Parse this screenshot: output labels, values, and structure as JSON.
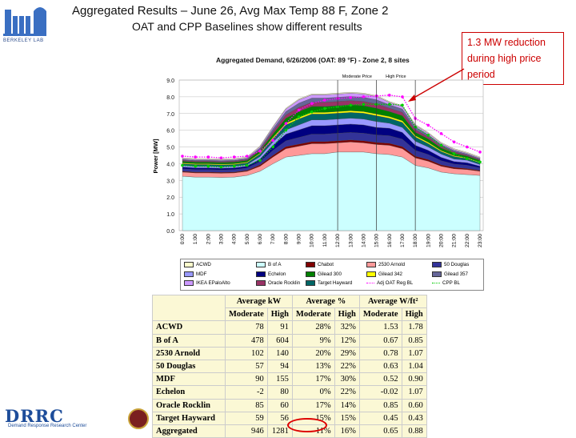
{
  "header": {
    "title": "Aggregated Results – June 26, Avg Max Temp 88 F, Zone 2",
    "subtitle": "OAT and CPP Baselines show different results"
  },
  "logo_top": {
    "text": "BERKELEY LAB"
  },
  "callout": {
    "text": "1.3 MW reduction during high price period",
    "color": "#cc0000"
  },
  "chart_data": {
    "type": "area",
    "title": "Aggregated Demand, 6/26/2006 (OAT: 89 °F) - Zone 2, 8 sites",
    "ylabel": "Power [MW]",
    "xlabel": "",
    "ylim": [
      0,
      9
    ],
    "yticks": [
      "0.0",
      "1.0",
      "2.0",
      "3.0",
      "4.0",
      "5.0",
      "6.0",
      "7.0",
      "8.0",
      "9.0"
    ],
    "categories": [
      "0:00",
      "1:00",
      "2:00",
      "3:00",
      "4:00",
      "5:00",
      "6:00",
      "7:00",
      "8:00",
      "9:00",
      "10:00",
      "11:00",
      "12:00",
      "13:00",
      "14:00",
      "15:00",
      "16:00",
      "17:00",
      "18:00",
      "19:00",
      "20:00",
      "21:00",
      "22:00",
      "23:00"
    ],
    "period_labels": {
      "moderate": "Moderate Price",
      "high": "High Price"
    },
    "series": [
      {
        "name": "B of A",
        "color": "#ccffff",
        "values": [
          3.25,
          3.2,
          3.2,
          3.18,
          3.2,
          3.3,
          3.55,
          4.0,
          4.4,
          4.5,
          4.6,
          4.6,
          4.7,
          4.7,
          4.7,
          4.6,
          4.55,
          4.4,
          3.9,
          3.75,
          3.5,
          3.4,
          3.35,
          3.3
        ]
      },
      {
        "name": "2530 Arnold",
        "color": "#ff9999",
        "values": [
          0.25,
          0.25,
          0.25,
          0.25,
          0.25,
          0.25,
          0.3,
          0.4,
          0.5,
          0.55,
          0.6,
          0.6,
          0.55,
          0.6,
          0.55,
          0.55,
          0.55,
          0.5,
          0.45,
          0.4,
          0.35,
          0.3,
          0.3,
          0.25
        ]
      },
      {
        "name": "Chabot",
        "color": "#800000",
        "values": [
          0.05,
          0.05,
          0.05,
          0.05,
          0.05,
          0.05,
          0.08,
          0.1,
          0.12,
          0.12,
          0.12,
          0.12,
          0.12,
          0.12,
          0.12,
          0.12,
          0.12,
          0.12,
          0.1,
          0.1,
          0.08,
          0.08,
          0.06,
          0.05
        ]
      },
      {
        "name": "50 Douglas",
        "color": "#333399",
        "values": [
          0.15,
          0.15,
          0.15,
          0.15,
          0.15,
          0.15,
          0.2,
          0.3,
          0.35,
          0.4,
          0.45,
          0.45,
          0.45,
          0.45,
          0.45,
          0.45,
          0.45,
          0.45,
          0.35,
          0.3,
          0.25,
          0.2,
          0.2,
          0.15
        ]
      },
      {
        "name": "Echelon",
        "color": "#000080",
        "values": [
          0.1,
          0.1,
          0.1,
          0.1,
          0.1,
          0.1,
          0.15,
          0.3,
          0.4,
          0.45,
          0.5,
          0.5,
          0.5,
          0.5,
          0.5,
          0.45,
          0.45,
          0.4,
          0.3,
          0.25,
          0.2,
          0.15,
          0.15,
          0.1
        ]
      },
      {
        "name": "MDF",
        "color": "#9999ff",
        "values": [
          0.1,
          0.1,
          0.1,
          0.1,
          0.1,
          0.1,
          0.15,
          0.2,
          0.25,
          0.3,
          0.35,
          0.35,
          0.35,
          0.35,
          0.35,
          0.35,
          0.3,
          0.3,
          0.25,
          0.2,
          0.2,
          0.15,
          0.15,
          0.1
        ]
      },
      {
        "name": "Target Hayward",
        "color": "#006666",
        "values": [
          0.1,
          0.1,
          0.1,
          0.1,
          0.1,
          0.1,
          0.15,
          0.2,
          0.3,
          0.35,
          0.35,
          0.35,
          0.35,
          0.35,
          0.35,
          0.35,
          0.3,
          0.3,
          0.25,
          0.2,
          0.15,
          0.15,
          0.1,
          0.1
        ]
      },
      {
        "name": "Gilead 342",
        "color": "#ffff00",
        "values": [
          0.05,
          0.05,
          0.05,
          0.05,
          0.05,
          0.05,
          0.05,
          0.08,
          0.1,
          0.1,
          0.1,
          0.1,
          0.1,
          0.1,
          0.1,
          0.1,
          0.1,
          0.1,
          0.08,
          0.08,
          0.06,
          0.05,
          0.05,
          0.05
        ]
      },
      {
        "name": "Gilead 300",
        "color": "#008000",
        "values": [
          0.1,
          0.1,
          0.1,
          0.1,
          0.1,
          0.1,
          0.15,
          0.2,
          0.3,
          0.35,
          0.35,
          0.35,
          0.35,
          0.35,
          0.35,
          0.35,
          0.3,
          0.3,
          0.2,
          0.2,
          0.15,
          0.15,
          0.1,
          0.1
        ]
      },
      {
        "name": "Oracle Rocklin",
        "color": "#993366",
        "values": [
          0.05,
          0.05,
          0.05,
          0.05,
          0.05,
          0.05,
          0.08,
          0.15,
          0.2,
          0.25,
          0.25,
          0.25,
          0.25,
          0.25,
          0.25,
          0.25,
          0.2,
          0.2,
          0.15,
          0.12,
          0.1,
          0.08,
          0.06,
          0.05
        ]
      },
      {
        "name": "Gilead 357",
        "color": "#666699",
        "values": [
          0.05,
          0.05,
          0.05,
          0.05,
          0.05,
          0.05,
          0.08,
          0.15,
          0.2,
          0.25,
          0.25,
          0.25,
          0.25,
          0.25,
          0.25,
          0.25,
          0.2,
          0.2,
          0.15,
          0.12,
          0.1,
          0.08,
          0.06,
          0.05
        ]
      },
      {
        "name": "IKEA EPaloAlto",
        "color": "#cc99ff",
        "values": [
          0.05,
          0.05,
          0.05,
          0.05,
          0.05,
          0.05,
          0.08,
          0.1,
          0.15,
          0.2,
          0.2,
          0.2,
          0.2,
          0.2,
          0.2,
          0.2,
          0.15,
          0.15,
          0.12,
          0.1,
          0.08,
          0.06,
          0.05,
          0.05
        ]
      },
      {
        "name": "ACWD",
        "color": "#ffffcc",
        "values": [
          0.05,
          0.05,
          0.05,
          0.05,
          0.05,
          0.05,
          0.05,
          0.05,
          0.05,
          0.05,
          0.05,
          0.05,
          0.05,
          0.05,
          0.05,
          0.05,
          0.05,
          0.05,
          0.05,
          0.05,
          0.05,
          0.05,
          0.05,
          0.05
        ]
      }
    ],
    "lines": [
      {
        "name": "Adj OAT Reg BL",
        "color": "#ff00ff",
        "values": [
          4.45,
          4.4,
          4.4,
          4.35,
          4.4,
          4.45,
          4.75,
          5.4,
          6.4,
          7.2,
          7.6,
          7.8,
          7.9,
          7.95,
          8.0,
          8.05,
          8.1,
          8.0,
          6.7,
          6.3,
          5.8,
          5.3,
          5.0,
          4.7
        ]
      },
      {
        "name": "CPP BL",
        "color": "#00cc00",
        "values": [
          3.9,
          3.85,
          3.85,
          3.8,
          3.85,
          3.9,
          4.2,
          5.0,
          6.0,
          6.8,
          7.1,
          7.3,
          7.4,
          7.5,
          7.55,
          7.55,
          7.55,
          7.5,
          6.2,
          5.7,
          5.1,
          4.6,
          4.3,
          4.1
        ]
      }
    ]
  },
  "legend": [
    {
      "name": "ACWD",
      "color": "#ffffcc",
      "kind": "box"
    },
    {
      "name": "B of A",
      "color": "#ccffff",
      "kind": "box"
    },
    {
      "name": "Chabot",
      "color": "#800000",
      "kind": "box"
    },
    {
      "name": "2530 Arnold",
      "color": "#ff9999",
      "kind": "box"
    },
    {
      "name": "50 Douglas",
      "color": "#333399",
      "kind": "box"
    },
    {
      "name": "MDF",
      "color": "#9999ff",
      "kind": "box"
    },
    {
      "name": "Echelon",
      "color": "#000080",
      "kind": "box"
    },
    {
      "name": "Gilead 300",
      "color": "#008000",
      "kind": "box"
    },
    {
      "name": "Gilead 342",
      "color": "#ffff00",
      "kind": "box"
    },
    {
      "name": "Gilead 357",
      "color": "#666699",
      "kind": "box"
    },
    {
      "name": "IKEA EPaloAlto",
      "color": "#cc99ff",
      "kind": "box"
    },
    {
      "name": "Oracle Rocklin",
      "color": "#993366",
      "kind": "box"
    },
    {
      "name": "Target Hayward",
      "color": "#006666",
      "kind": "box"
    },
    {
      "name": "Adj OAT Reg BL",
      "color": "#ff00ff",
      "kind": "line"
    },
    {
      "name": "CPP BL",
      "color": "#00cc00",
      "kind": "line"
    }
  ],
  "table": {
    "group_headers": [
      "Average kW",
      "Average %",
      "Average W/ft²"
    ],
    "sub_headers": [
      "Moderate",
      "High",
      "Moderate",
      "High",
      "Moderate",
      "High"
    ],
    "rows": [
      {
        "name": "ACWD",
        "vals": [
          "78",
          "91",
          "28%",
          "32%",
          "1.53",
          "1.78"
        ]
      },
      {
        "name": "B of A",
        "vals": [
          "478",
          "604",
          "9%",
          "12%",
          "0.67",
          "0.85"
        ]
      },
      {
        "name": "2530 Arnold",
        "vals": [
          "102",
          "140",
          "20%",
          "29%",
          "0.78",
          "1.07"
        ]
      },
      {
        "name": "50 Douglas",
        "vals": [
          "57",
          "94",
          "13%",
          "22%",
          "0.63",
          "1.04"
        ]
      },
      {
        "name": "MDF",
        "vals": [
          "90",
          "155",
          "17%",
          "30%",
          "0.52",
          "0.90"
        ]
      },
      {
        "name": "Echelon",
        "vals": [
          "-2",
          "80",
          "0%",
          "22%",
          "-0.02",
          "1.07"
        ]
      },
      {
        "name": "Oracle Rocklin",
        "vals": [
          "85",
          "60",
          "17%",
          "14%",
          "0.85",
          "0.60"
        ]
      },
      {
        "name": "Target Hayward",
        "vals": [
          "59",
          "56",
          "15%",
          "15%",
          "0.45",
          "0.43"
        ]
      },
      {
        "name": "Aggregated",
        "vals": [
          "946",
          "1281",
          "11%",
          "16%",
          "0.65",
          "0.88"
        ]
      }
    ]
  },
  "footer_logo": {
    "text": "DRRC",
    "subtext": "Demand Response Research Center"
  }
}
